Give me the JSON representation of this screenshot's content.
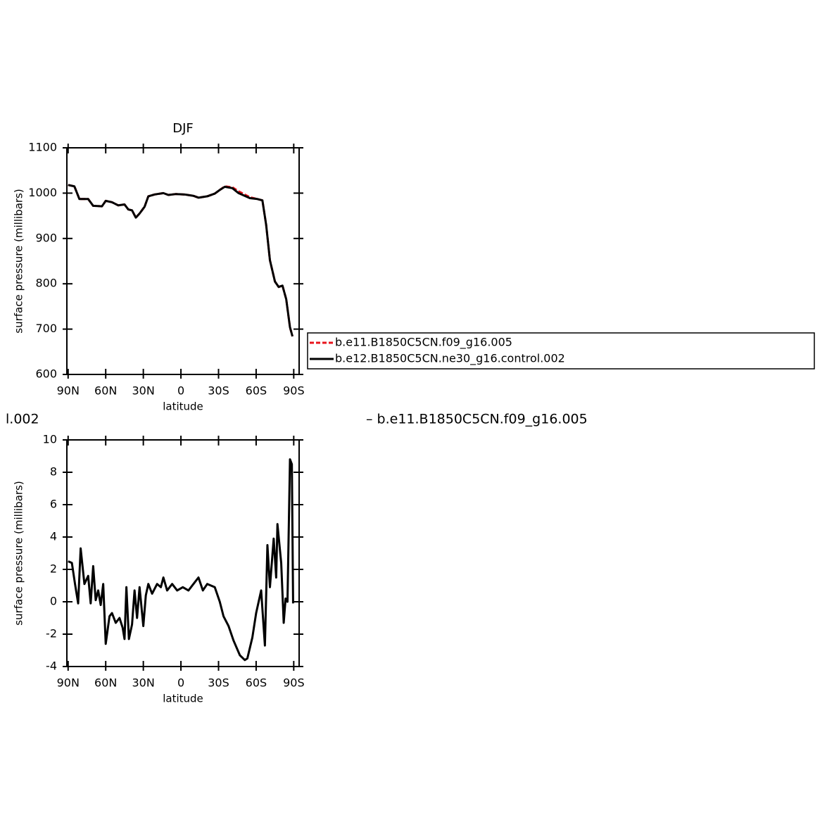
{
  "chart_data": [
    {
      "type": "line",
      "title": "DJF",
      "xlabel": "latitude",
      "ylabel": "surface pressure (millibars)",
      "x": [
        90,
        85,
        81,
        74,
        70,
        63,
        60,
        55,
        50,
        45,
        42,
        39,
        36,
        33,
        29,
        26,
        21,
        14,
        10,
        4,
        -3,
        -10,
        -14,
        -21,
        -27,
        -31,
        -35,
        -41,
        -46,
        -55,
        -61,
        -65,
        -68,
        -71,
        -75,
        -78,
        -81,
        -84,
        -87,
        -89
      ],
      "xlim": [
        91,
        -94.3
      ],
      "xticks": [
        {
          "value": 90,
          "label": "90N"
        },
        {
          "value": 60,
          "label": "60N"
        },
        {
          "value": 30,
          "label": "30N"
        },
        0,
        {
          "value": -30,
          "label": "30S"
        },
        {
          "value": -60,
          "label": "60S"
        },
        {
          "value": -90,
          "label": "90S"
        }
      ],
      "ylim": [
        600,
        1100
      ],
      "yticks": [
        600,
        700,
        800,
        900,
        1000,
        1100
      ],
      "series": [
        {
          "name": "b.e11.B1850C5CN.f09_g16.005",
          "color": "#e8141c",
          "dashed": true,
          "values": [
            1018,
            1015,
            987,
            987,
            972,
            971,
            983,
            980,
            973,
            975,
            964,
            962,
            946,
            955,
            970,
            993,
            997,
            1000,
            996,
            998,
            997,
            994,
            990,
            993,
            999,
            1007,
            1015,
            1013,
            1004,
            991,
            987,
            984,
            930,
            852,
            805,
            793,
            796,
            766,
            704,
            684
          ]
        },
        {
          "name": "b.e12.B1850C5CN.ne30_g16.control.002",
          "color": "#000000",
          "dashed": false,
          "values": [
            1018,
            1015,
            987,
            987,
            972,
            971,
            983,
            980,
            973,
            975,
            964,
            962,
            946,
            955,
            970,
            993,
            997,
            1000,
            996,
            998,
            997,
            994,
            990,
            993,
            999,
            1007,
            1014,
            1011,
            1000,
            989,
            987,
            984,
            930,
            852,
            805,
            793,
            796,
            766,
            704,
            684
          ]
        }
      ]
    },
    {
      "type": "line",
      "left_string": "l.002",
      "right_string": "– b.e11.B1850C5CN.f09_g16.005",
      "xlabel": "latitude",
      "ylabel": "surface pressure (millibars)",
      "x": [
        90,
        87,
        84.5,
        82,
        80,
        77,
        74,
        72,
        70,
        68,
        66,
        64,
        62,
        60,
        57,
        55,
        52,
        49,
        46.5,
        45,
        43.5,
        41.5,
        39,
        37,
        35,
        33,
        30,
        28,
        26,
        23,
        19,
        16,
        14,
        11,
        7,
        3,
        -1.5,
        -6,
        -10,
        -14,
        -17.5,
        -21,
        -27,
        -31,
        -34,
        -38,
        -42,
        -47,
        -51,
        -53,
        -57,
        -60,
        -64,
        -67,
        -69,
        -71,
        -74,
        -76,
        -77,
        -80,
        -82,
        -83.5,
        -85,
        -87,
        -88.5,
        -89.5
      ],
      "xlim": [
        91,
        -94.3
      ],
      "xticks": [
        {
          "value": 90,
          "label": "90N"
        },
        {
          "value": 60,
          "label": "60N"
        },
        {
          "value": 30,
          "label": "30N"
        },
        0,
        {
          "value": -30,
          "label": "30S"
        },
        {
          "value": -60,
          "label": "60S"
        },
        {
          "value": -90,
          "label": "90S"
        }
      ],
      "ylim": [
        -4,
        10
      ],
      "yticks": [
        -4,
        -2,
        0,
        2,
        4,
        6,
        8,
        10
      ],
      "series": [
        {
          "color": "#000000",
          "dashed": false,
          "values": [
            2.5,
            2.4,
            1.1,
            -0.1,
            3.3,
            1.1,
            1.6,
            -0.1,
            2.2,
            0.1,
            0.7,
            -0.2,
            1.1,
            -2.6,
            -0.9,
            -0.7,
            -1.3,
            -1.0,
            -1.6,
            -2.3,
            0.9,
            -2.3,
            -1.4,
            0.7,
            -1.0,
            0.9,
            -1.5,
            0.4,
            1.1,
            0.5,
            1.1,
            0.9,
            1.5,
            0.7,
            1.1,
            0.7,
            0.9,
            0.7,
            1.1,
            1.5,
            0.7,
            1.1,
            0.9,
            0.0,
            -0.9,
            -1.5,
            -2.4,
            -3.3,
            -3.6,
            -3.5,
            -2.2,
            -0.7,
            0.7,
            -2.7,
            3.5,
            0.9,
            3.9,
            1.5,
            4.8,
            2.4,
            -1.3,
            0.2,
            0.0,
            8.8,
            8.5,
            -0.1
          ]
        }
      ]
    }
  ]
}
